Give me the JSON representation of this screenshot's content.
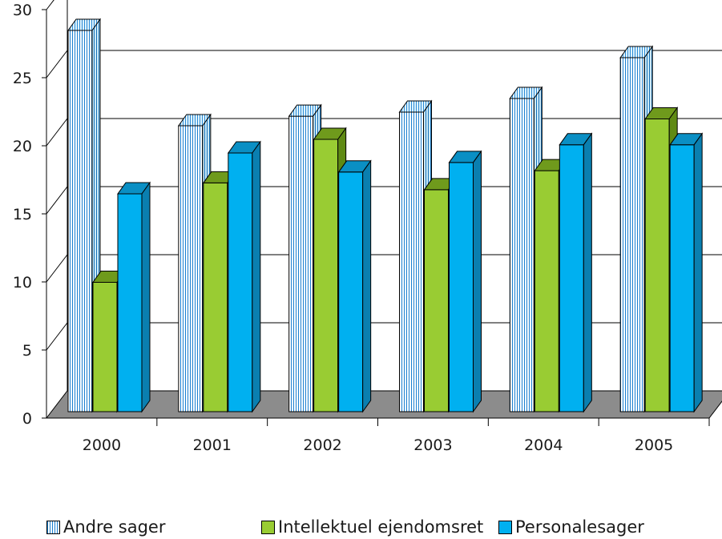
{
  "chart_data": {
    "type": "bar",
    "three_d": true,
    "categories": [
      "2000",
      "2001",
      "2002",
      "2003",
      "2004",
      "2005"
    ],
    "series": [
      {
        "name": "Andre sager",
        "values": [
          28,
          21,
          21.7,
          22,
          23,
          26
        ],
        "color": "#7fcdf0",
        "pattern": "vertical-hatch"
      },
      {
        "name": "Intellektuel ejendomsret",
        "values": [
          9.5,
          16.8,
          20,
          16.3,
          17.7,
          21.5
        ],
        "color": "#99cc33",
        "pattern": "solid"
      },
      {
        "name": "Personalesager",
        "values": [
          16,
          19,
          17.6,
          18.3,
          19.6,
          19.6
        ],
        "color": "#00b0f0",
        "pattern": "solid"
      }
    ],
    "ylim": [
      0,
      30
    ],
    "yticks": [
      "0",
      "5",
      "10",
      "15",
      "20",
      "25",
      "30"
    ],
    "grid": true,
    "floor_color": "#8c8c8c",
    "legend_position": "bottom"
  }
}
